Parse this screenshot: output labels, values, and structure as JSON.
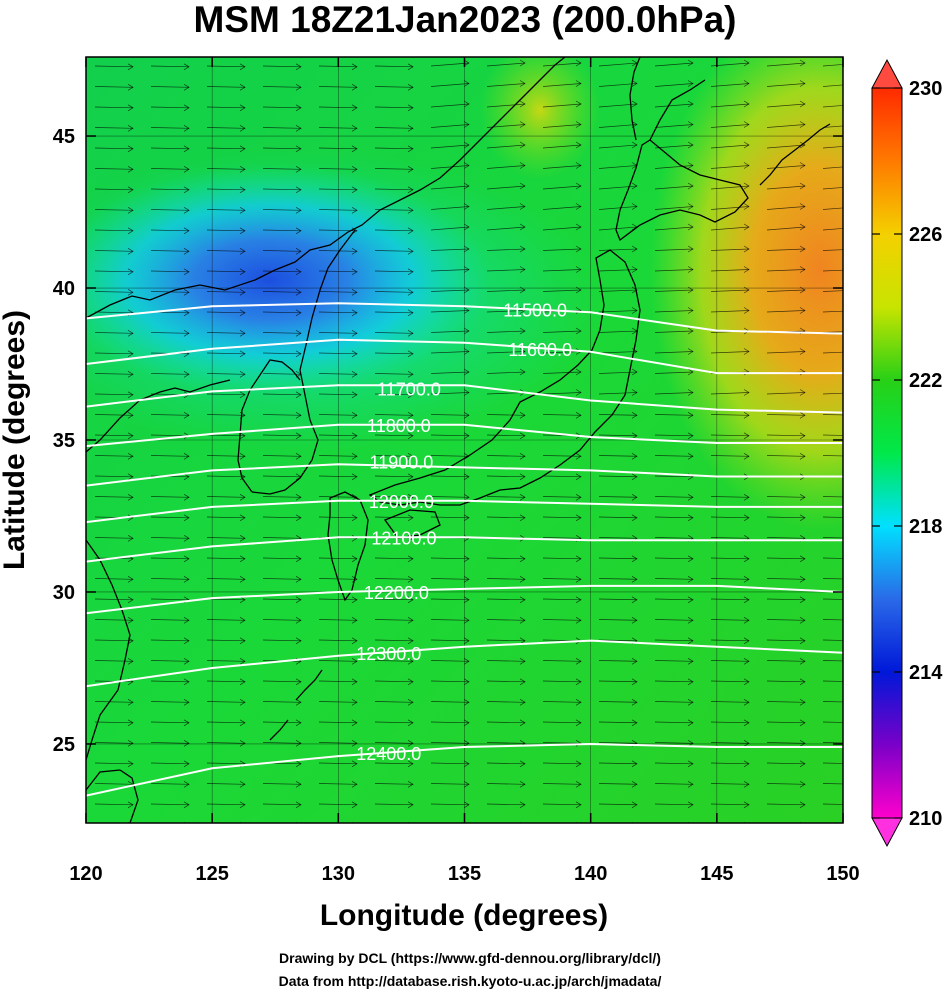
{
  "title": "MSM 18Z21Jan2023 (200.0hPa)",
  "credits": [
    "Drawing by DCL (https://www.gfd-dennou.org/library/dcl/)",
    "Data from http://database.rish.kyoto-u.ac.jp/arch/jmadata/"
  ],
  "chart_data": {
    "type": "heatmap",
    "xlabel": "Longitude (degrees)",
    "ylabel": "Latitude  (degrees)",
    "xlim": [
      120,
      150
    ],
    "ylim": [
      22.4,
      47.6
    ],
    "x_ticks": [
      "120",
      "125",
      "130",
      "135",
      "140",
      "145",
      "150"
    ],
    "y_ticks": [
      "25",
      "30",
      "35",
      "40",
      "45"
    ],
    "x_tick_values": [
      120,
      125,
      130,
      135,
      140,
      145,
      150
    ],
    "y_tick_values": [
      25,
      30,
      35,
      40,
      45
    ],
    "colorbar": {
      "range": [
        210,
        230
      ],
      "ticks": [
        "230",
        "226",
        "222",
        "218",
        "214",
        "210"
      ],
      "tick_values": [
        230,
        226,
        222,
        218,
        214,
        210
      ],
      "colors": [
        "#ff00cc",
        "#7a00c8",
        "#0018d8",
        "#2a7ae8",
        "#00e0ff",
        "#00e84a",
        "#28d016",
        "#c8e400",
        "#f4d000",
        "#ff7a00",
        "#ff2a00"
      ]
    },
    "contours": [
      {
        "label": "11500.0",
        "value": 11500,
        "points": [
          [
            120,
            39.0
          ],
          [
            125,
            39.4
          ],
          [
            130,
            39.5
          ],
          [
            135,
            39.4
          ],
          [
            140,
            39.2
          ],
          [
            145,
            38.6
          ],
          [
            150,
            38.5
          ]
        ],
        "label_at": [
          137.8,
          39.3
        ]
      },
      {
        "label": "11600.0",
        "value": 11600,
        "points": [
          [
            120,
            37.5
          ],
          [
            125,
            38.0
          ],
          [
            130,
            38.3
          ],
          [
            135,
            38.2
          ],
          [
            140,
            37.9
          ],
          [
            145,
            37.2
          ],
          [
            150,
            37.2
          ]
        ],
        "label_at": [
          138.0,
          38.0
        ]
      },
      {
        "label": "11700.0",
        "value": 11700,
        "points": [
          [
            120,
            36.1
          ],
          [
            125,
            36.6
          ],
          [
            130,
            36.8
          ],
          [
            135,
            36.8
          ],
          [
            140,
            36.3
          ],
          [
            145,
            36.0
          ],
          [
            150,
            35.9
          ]
        ],
        "label_at": [
          132.8,
          36.7
        ]
      },
      {
        "label": "11800.0",
        "value": 11800,
        "points": [
          [
            120,
            34.8
          ],
          [
            125,
            35.2
          ],
          [
            130,
            35.5
          ],
          [
            135,
            35.5
          ],
          [
            140,
            35.1
          ],
          [
            145,
            34.9
          ],
          [
            150,
            34.9
          ]
        ],
        "label_at": [
          132.4,
          35.5
        ]
      },
      {
        "label": "11900.0",
        "value": 11900,
        "points": [
          [
            120,
            33.5
          ],
          [
            125,
            34.0
          ],
          [
            130,
            34.2
          ],
          [
            135,
            34.1
          ],
          [
            140,
            34.0
          ],
          [
            145,
            33.8
          ],
          [
            150,
            33.8
          ]
        ],
        "label_at": [
          132.5,
          34.3
        ]
      },
      {
        "label": "12000.0",
        "value": 12000,
        "points": [
          [
            120,
            32.3
          ],
          [
            125,
            32.8
          ],
          [
            130,
            33.0
          ],
          [
            135,
            33.0
          ],
          [
            140,
            32.9
          ],
          [
            145,
            32.8
          ],
          [
            150,
            32.8
          ]
        ],
        "label_at": [
          132.5,
          33.0
        ]
      },
      {
        "label": "12100.0",
        "value": 12100,
        "points": [
          [
            120,
            31.0
          ],
          [
            125,
            31.5
          ],
          [
            130,
            31.8
          ],
          [
            135,
            31.8
          ],
          [
            140,
            31.7
          ],
          [
            145,
            31.7
          ],
          [
            150,
            31.7
          ]
        ],
        "label_at": [
          132.6,
          31.8
        ]
      },
      {
        "label": "12200.0",
        "value": 12200,
        "points": [
          [
            120,
            29.3
          ],
          [
            125,
            29.8
          ],
          [
            130,
            30.0
          ],
          [
            135,
            30.1
          ],
          [
            140,
            30.2
          ],
          [
            145,
            30.2
          ],
          [
            150,
            30.0
          ]
        ],
        "label_at": [
          132.3,
          30.0
        ]
      },
      {
        "label": "12300.0",
        "value": 12300,
        "points": [
          [
            120,
            26.9
          ],
          [
            125,
            27.5
          ],
          [
            130,
            27.9
          ],
          [
            135,
            28.2
          ],
          [
            140,
            28.4
          ],
          [
            145,
            28.2
          ],
          [
            150,
            28.0
          ]
        ],
        "label_at": [
          132.0,
          28.0
        ]
      },
      {
        "label": "12400.0",
        "value": 12400,
        "points": [
          [
            120,
            23.3
          ],
          [
            125,
            24.2
          ],
          [
            130,
            24.6
          ],
          [
            135,
            24.9
          ],
          [
            140,
            25.0
          ],
          [
            145,
            24.9
          ],
          [
            150,
            24.9
          ]
        ],
        "label_at": [
          132.0,
          24.7
        ]
      }
    ],
    "wind": "vectors (arrows) pointing eastward across the domain"
  }
}
